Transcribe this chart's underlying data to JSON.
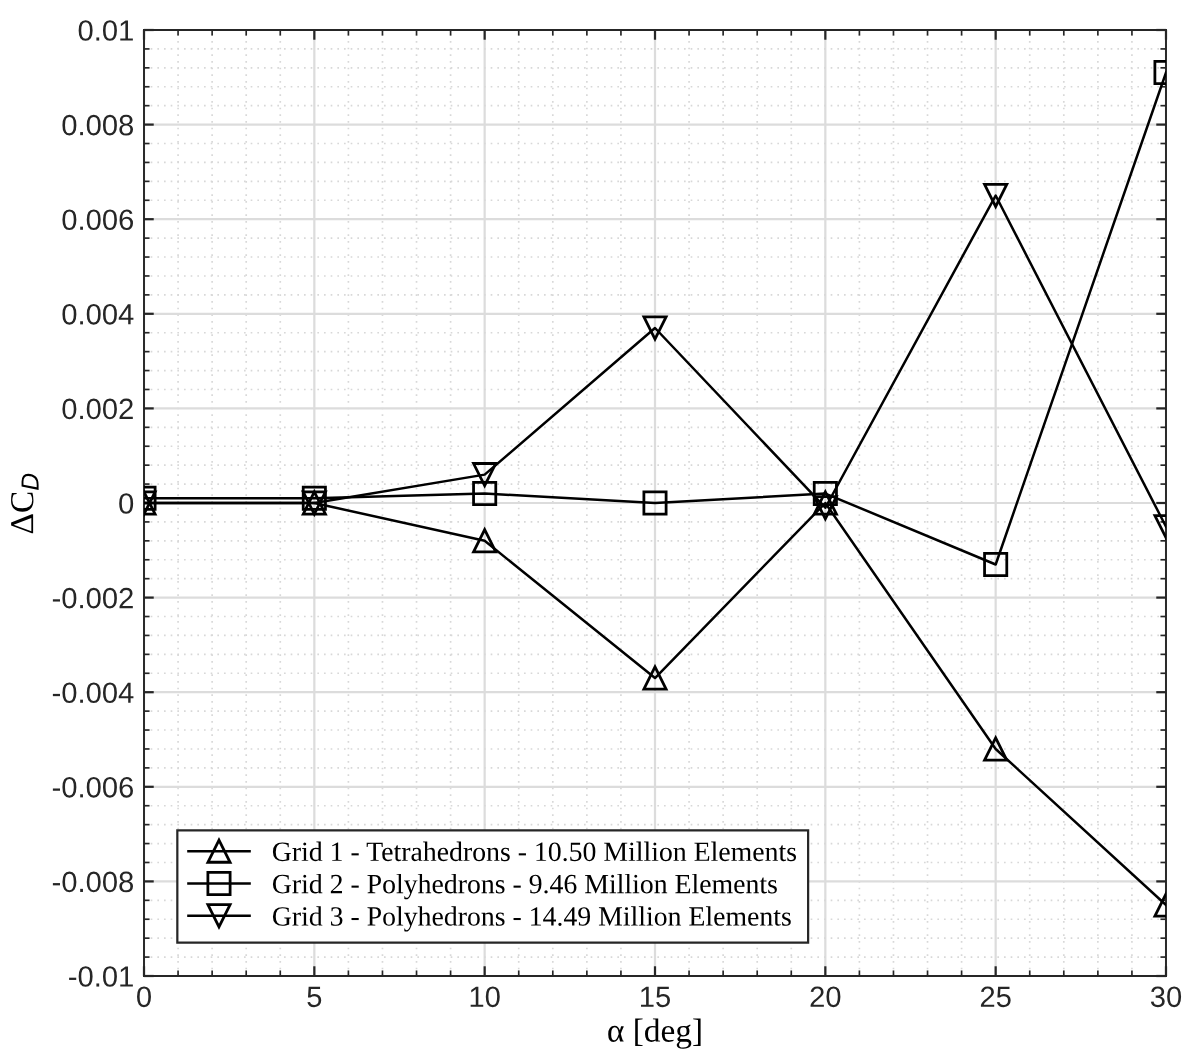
{
  "chart_data": {
    "type": "line",
    "xlabel": "α [deg]",
    "ylabel": "ΔC$_{D}$",
    "x": [
      0,
      5,
      10,
      15,
      20,
      25,
      30
    ],
    "series": [
      {
        "name": "Grid 1 - Tetrahedrons - 10.50 Million Elements",
        "color": "#000000",
        "marker": "triangle",
        "values": [
          0,
          0,
          -0.0008,
          -0.0037,
          0,
          -0.0052,
          -0.0085
        ]
      },
      {
        "name": "Grid 2 - Polyhedrons - 9.46 Million Elements",
        "color": "#000000",
        "marker": "square",
        "values": [
          0.0001,
          0.0001,
          0.0002,
          0,
          0.0002,
          -0.0013,
          0.0091
        ]
      },
      {
        "name": "Grid 3 - Polyhedrons - 14.49 Million Elements",
        "color": "#000000",
        "marker": "triangle_down",
        "values": [
          0,
          0,
          0.0006,
          0.0037,
          -0.0001,
          0.0065,
          -0.0005
        ]
      }
    ],
    "xlim": [
      0,
      30
    ],
    "xticks": [
      0,
      5,
      10,
      15,
      20,
      25,
      30
    ],
    "ylim": [
      -0.01,
      0.01
    ],
    "yticks": [
      -0.01,
      -0.008,
      -0.006,
      -0.004,
      -0.002,
      0,
      0.002,
      0.004,
      0.006,
      0.008,
      0.01
    ],
    "grid": true,
    "legend": "bottom left",
    "line_style": "solid"
  }
}
